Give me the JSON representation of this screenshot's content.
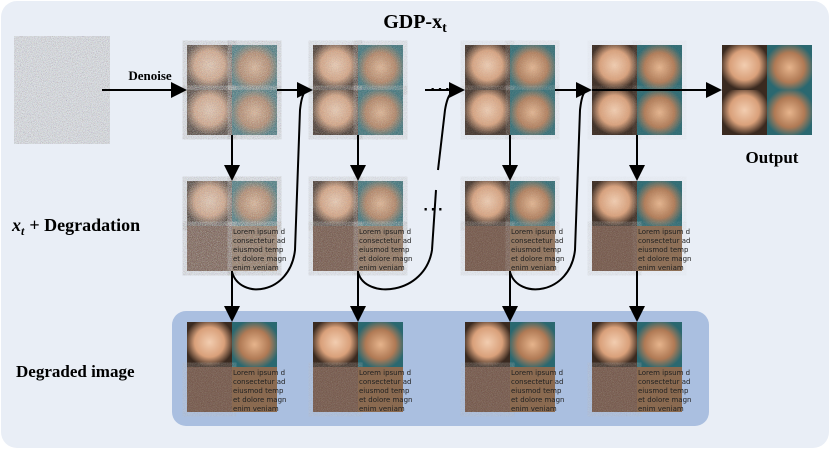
{
  "header": {
    "title": "GDP-x",
    "title_subscript": "t"
  },
  "labels": {
    "denoise": "Denoise",
    "output": "Output",
    "degradation": {
      "variable": "x",
      "subscript": "t",
      "text": "+ Degradation"
    },
    "degraded": "Degraded image",
    "ellipsis": "⋯"
  },
  "overlay_text": [
    "Lorem ipsum d",
    "consectetur ad",
    "eiusmod temp",
    "et dolore magn",
    "enim veniam"
  ]
}
